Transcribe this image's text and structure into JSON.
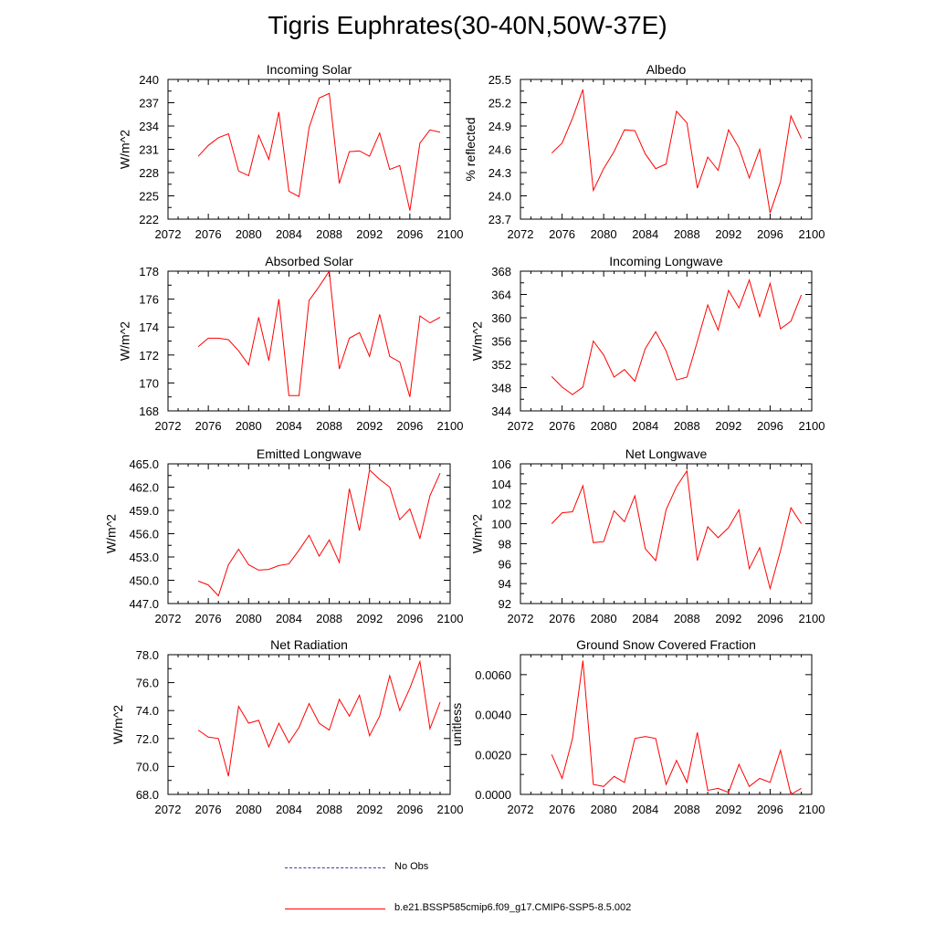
{
  "title": "Tigris Euphrates(30-40N,50W-37E)",
  "legend": {
    "obs_label": "No Obs",
    "model_label": "b.e21.BSSP585cmip6.f09_g17.CMIP6-SSP5-8.5.002",
    "obs_color": "#3a3aaa",
    "model_color": "#ff0000"
  },
  "chart_data": [
    {
      "type": "line",
      "title": "Incoming Solar",
      "ylabel": "W/m^2",
      "xlim": [
        2072,
        2100
      ],
      "xticks": [
        2072,
        2076,
        2080,
        2084,
        2088,
        2092,
        2096,
        2100
      ],
      "ylim": [
        222,
        240
      ],
      "yticks": [
        "222",
        "225",
        "228",
        "231",
        "234",
        "237",
        "240"
      ],
      "x": [
        2075,
        2076,
        2077,
        2078,
        2079,
        2080,
        2081,
        2082,
        2083,
        2084,
        2085,
        2086,
        2087,
        2088,
        2089,
        2090,
        2091,
        2092,
        2093,
        2094,
        2095,
        2096,
        2097,
        2098,
        2099
      ],
      "series": [
        {
          "values": [
            230.1,
            231.5,
            232.5,
            233.0,
            228.2,
            227.6,
            232.8,
            229.7,
            235.8,
            225.6,
            224.9,
            233.8,
            237.6,
            238.2,
            226.6,
            230.7,
            230.8,
            230.1,
            233.1,
            228.4,
            228.9,
            223.1,
            231.8,
            233.5,
            233.2
          ],
          "color": "#ff0000"
        }
      ]
    },
    {
      "type": "line",
      "title": "Albedo",
      "ylabel": "% reflected",
      "xlim": [
        2072,
        2100
      ],
      "xticks": [
        2072,
        2076,
        2080,
        2084,
        2088,
        2092,
        2096,
        2100
      ],
      "ylim": [
        23.7,
        25.5
      ],
      "yticks": [
        "23.7",
        "24.0",
        "24.3",
        "24.6",
        "24.9",
        "25.2",
        "25.5"
      ],
      "x": [
        2075,
        2076,
        2077,
        2078,
        2079,
        2080,
        2081,
        2082,
        2083,
        2084,
        2085,
        2086,
        2087,
        2088,
        2089,
        2090,
        2091,
        2092,
        2093,
        2094,
        2095,
        2096,
        2097,
        2098,
        2099
      ],
      "series": [
        {
          "values": [
            24.55,
            24.68,
            25.0,
            25.37,
            24.07,
            24.35,
            24.57,
            24.85,
            24.84,
            24.54,
            24.35,
            24.41,
            25.09,
            24.94,
            24.1,
            24.5,
            24.33,
            24.85,
            24.62,
            24.23,
            24.6,
            23.78,
            24.18,
            25.03,
            24.74
          ],
          "color": "#ff0000"
        }
      ]
    },
    {
      "type": "line",
      "title": "Absorbed Solar",
      "ylabel": "W/m^2",
      "xlim": [
        2072,
        2100
      ],
      "xticks": [
        2072,
        2076,
        2080,
        2084,
        2088,
        2092,
        2096,
        2100
      ],
      "ylim": [
        168,
        178
      ],
      "yticks": [
        "168",
        "170",
        "172",
        "174",
        "176",
        "178"
      ],
      "x": [
        2075,
        2076,
        2077,
        2078,
        2079,
        2080,
        2081,
        2082,
        2083,
        2084,
        2085,
        2086,
        2087,
        2088,
        2089,
        2090,
        2091,
        2092,
        2093,
        2094,
        2095,
        2096,
        2097,
        2098,
        2099
      ],
      "series": [
        {
          "values": [
            172.6,
            173.2,
            173.2,
            173.1,
            172.3,
            171.3,
            174.7,
            171.6,
            176.0,
            169.1,
            169.1,
            175.9,
            176.9,
            178.0,
            171.0,
            173.2,
            173.6,
            171.9,
            174.9,
            171.9,
            171.5,
            169.0,
            174.8,
            174.3,
            174.7
          ],
          "color": "#ff0000"
        }
      ]
    },
    {
      "type": "line",
      "title": "Incoming Longwave",
      "ylabel": "W/m^2",
      "xlim": [
        2072,
        2100
      ],
      "xticks": [
        2072,
        2076,
        2080,
        2084,
        2088,
        2092,
        2096,
        2100
      ],
      "ylim": [
        344,
        368
      ],
      "yticks": [
        "344",
        "348",
        "352",
        "356",
        "360",
        "364",
        "368"
      ],
      "x": [
        2075,
        2076,
        2077,
        2078,
        2079,
        2080,
        2081,
        2082,
        2083,
        2084,
        2085,
        2086,
        2087,
        2088,
        2089,
        2090,
        2091,
        2092,
        2093,
        2094,
        2095,
        2096,
        2097,
        2098,
        2099
      ],
      "series": [
        {
          "values": [
            349.9,
            348.1,
            346.8,
            348.1,
            356.0,
            353.6,
            349.8,
            351.1,
            349.1,
            354.7,
            357.6,
            354.3,
            349.3,
            349.8,
            355.9,
            362.2,
            357.9,
            364.7,
            361.7,
            366.5,
            360.2,
            365.9,
            358.1,
            359.4,
            363.9
          ],
          "color": "#ff0000"
        }
      ]
    },
    {
      "type": "line",
      "title": "Emitted Longwave",
      "ylabel": "W/m^2",
      "xlim": [
        2072,
        2100
      ],
      "xticks": [
        2072,
        2076,
        2080,
        2084,
        2088,
        2092,
        2096,
        2100
      ],
      "ylim": [
        447,
        465
      ],
      "yticks": [
        "447.0",
        "450.0",
        "453.0",
        "456.0",
        "459.0",
        "462.0",
        "465.0"
      ],
      "x": [
        2075,
        2076,
        2077,
        2078,
        2079,
        2080,
        2081,
        2082,
        2083,
        2084,
        2085,
        2086,
        2087,
        2088,
        2089,
        2090,
        2091,
        2092,
        2093,
        2094,
        2095,
        2096,
        2097,
        2098,
        2099
      ],
      "series": [
        {
          "values": [
            449.9,
            449.4,
            448.0,
            452.0,
            454.0,
            452.0,
            451.3,
            451.4,
            451.9,
            452.1,
            453.9,
            455.8,
            453.1,
            455.2,
            452.3,
            461.8,
            456.4,
            464.2,
            463.0,
            462.0,
            457.8,
            459.2,
            455.4,
            460.9,
            463.8
          ],
          "color": "#ff0000"
        }
      ]
    },
    {
      "type": "line",
      "title": "Net Longwave",
      "ylabel": "W/m^2",
      "xlim": [
        2072,
        2100
      ],
      "xticks": [
        2072,
        2076,
        2080,
        2084,
        2088,
        2092,
        2096,
        2100
      ],
      "ylim": [
        92,
        106
      ],
      "yticks": [
        "92",
        "94",
        "96",
        "98",
        "100",
        "102",
        "104",
        "106"
      ],
      "x": [
        2075,
        2076,
        2077,
        2078,
        2079,
        2080,
        2081,
        2082,
        2083,
        2084,
        2085,
        2086,
        2087,
        2088,
        2089,
        2090,
        2091,
        2092,
        2093,
        2094,
        2095,
        2096,
        2097,
        2098,
        2099
      ],
      "series": [
        {
          "values": [
            100.0,
            101.1,
            101.2,
            103.8,
            98.1,
            98.2,
            101.3,
            100.2,
            102.8,
            97.5,
            96.3,
            101.4,
            103.7,
            105.3,
            96.3,
            99.7,
            98.6,
            99.6,
            101.4,
            95.5,
            97.6,
            93.5,
            97.3,
            101.6,
            100.0
          ],
          "color": "#ff0000"
        }
      ]
    },
    {
      "type": "line",
      "title": "Net Radiation",
      "ylabel": "W/m^2",
      "xlim": [
        2072,
        2100
      ],
      "xticks": [
        2072,
        2076,
        2080,
        2084,
        2088,
        2092,
        2096,
        2100
      ],
      "ylim": [
        68,
        78
      ],
      "yticks": [
        "68.0",
        "70.0",
        "72.0",
        "74.0",
        "76.0",
        "78.0"
      ],
      "x": [
        2075,
        2076,
        2077,
        2078,
        2079,
        2080,
        2081,
        2082,
        2083,
        2084,
        2085,
        2086,
        2087,
        2088,
        2089,
        2090,
        2091,
        2092,
        2093,
        2094,
        2095,
        2096,
        2097,
        2098,
        2099
      ],
      "series": [
        {
          "values": [
            72.6,
            72.1,
            72.0,
            69.3,
            74.3,
            73.1,
            73.3,
            71.4,
            73.1,
            71.7,
            72.8,
            74.5,
            73.1,
            72.6,
            74.8,
            73.6,
            75.1,
            72.2,
            73.6,
            76.5,
            74.0,
            75.6,
            77.5,
            72.7,
            74.6
          ],
          "color": "#ff0000"
        }
      ]
    },
    {
      "type": "line",
      "title": "Ground Snow Covered Fraction",
      "ylabel": "unitless",
      "xlim": [
        2072,
        2100
      ],
      "xticks": [
        2072,
        2076,
        2080,
        2084,
        2088,
        2092,
        2096,
        2100
      ],
      "ylim": [
        0,
        0.007
      ],
      "yticks": [
        "0.0000",
        "0.0020",
        "0.0040",
        "0.0060"
      ],
      "x": [
        2075,
        2076,
        2077,
        2078,
        2079,
        2080,
        2081,
        2082,
        2083,
        2084,
        2085,
        2086,
        2087,
        2088,
        2089,
        2090,
        2091,
        2092,
        2093,
        2094,
        2095,
        2096,
        2097,
        2098,
        2099
      ],
      "series": [
        {
          "values": [
            0.002,
            0.0008,
            0.0028,
            0.0067,
            0.0005,
            0.0004,
            0.0009,
            0.0006,
            0.0028,
            0.0029,
            0.0028,
            0.0005,
            0.0017,
            0.0006,
            0.0031,
            0.0002,
            0.0003,
            0.0001,
            0.0015,
            0.0004,
            0.0008,
            0.0006,
            0.0022,
            0.0,
            0.0003
          ],
          "color": "#ff0000"
        }
      ]
    }
  ]
}
